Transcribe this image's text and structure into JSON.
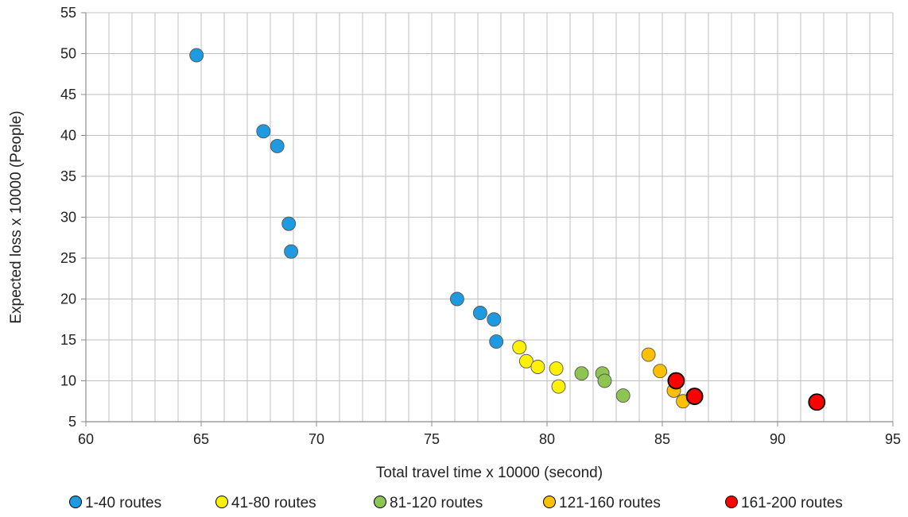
{
  "chart_data": {
    "type": "scatter",
    "xlabel": "Total travel time x 10000 (second)",
    "ylabel": "Expected loss x 10000 (People)",
    "xlim": [
      60,
      95
    ],
    "ylim": [
      5,
      55
    ],
    "x_ticks": [
      60,
      65,
      70,
      75,
      80,
      85,
      90,
      95
    ],
    "y_ticks": [
      5,
      10,
      15,
      20,
      25,
      30,
      35,
      40,
      45,
      50,
      55
    ],
    "grid": true,
    "legend_position": "bottom",
    "series": [
      {
        "name": "1-40 routes",
        "color": "#1E9BE0",
        "points": [
          {
            "x": 64.8,
            "y": 49.8
          },
          {
            "x": 67.7,
            "y": 40.5
          },
          {
            "x": 68.3,
            "y": 38.7
          },
          {
            "x": 68.8,
            "y": 29.2
          },
          {
            "x": 68.9,
            "y": 25.8
          },
          {
            "x": 76.1,
            "y": 20.0
          },
          {
            "x": 77.1,
            "y": 18.3
          },
          {
            "x": 77.7,
            "y": 17.5
          },
          {
            "x": 77.8,
            "y": 14.8
          }
        ]
      },
      {
        "name": "41-80 routes",
        "color": "#FFF200",
        "points": [
          {
            "x": 78.8,
            "y": 14.1
          },
          {
            "x": 79.1,
            "y": 12.4
          },
          {
            "x": 79.6,
            "y": 11.7
          },
          {
            "x": 80.4,
            "y": 11.5
          },
          {
            "x": 80.5,
            "y": 9.3
          }
        ]
      },
      {
        "name": "81-120 routes",
        "color": "#8DC452",
        "points": [
          {
            "x": 81.5,
            "y": 10.9
          },
          {
            "x": 82.4,
            "y": 10.9
          },
          {
            "x": 82.5,
            "y": 10.0
          },
          {
            "x": 83.3,
            "y": 8.2
          }
        ]
      },
      {
        "name": "121-160 routes",
        "color": "#FFC000",
        "points": [
          {
            "x": 84.4,
            "y": 13.2
          },
          {
            "x": 84.9,
            "y": 11.2
          },
          {
            "x": 85.5,
            "y": 8.8
          },
          {
            "x": 85.9,
            "y": 7.5
          }
        ]
      },
      {
        "name": "161-200 routes",
        "color": "#FF0000",
        "points": [
          {
            "x": 85.6,
            "y": 10.0
          },
          {
            "x": 86.4,
            "y": 8.1
          },
          {
            "x": 91.7,
            "y": 7.4
          }
        ]
      }
    ]
  }
}
